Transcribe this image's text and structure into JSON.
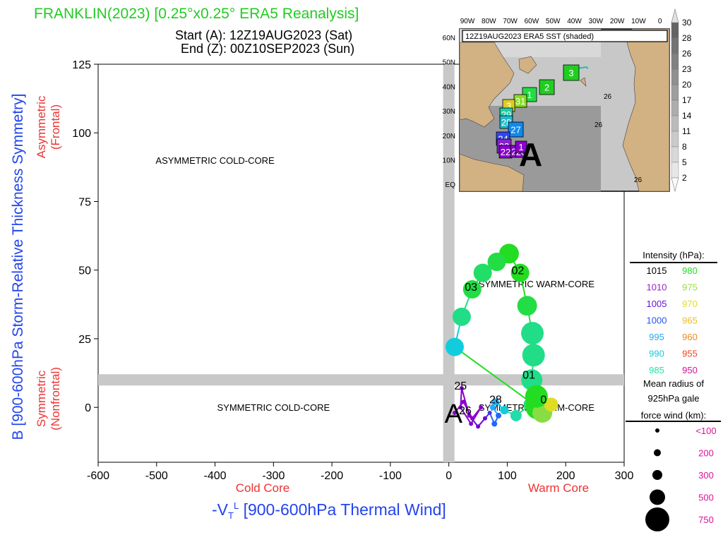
{
  "header": {
    "title": "FRANKLIN(2023) [0.25°x0.25° ERA5 Reanalysis]",
    "start": "Start (A): 12Z19AUG2023 (Sat)",
    "end": "End (Z): 00Z10SEP2023 (Sun)"
  },
  "chart_data": {
    "type": "scatter",
    "title": "FRANKLIN(2023) [0.25°x0.25° ERA5 Reanalysis]",
    "xlabel": "-VTL [900-600hPa Thermal Wind]",
    "xlabel_main": "-V",
    "xlabel_sub": "T",
    "xlabel_sup": "L",
    "xlabel_rest": " [900-600hPa Thermal Wind]",
    "ylabel": "B [900-600hPa Storm-Relative Thickness Symmetry]",
    "xlim": [
      -600,
      300
    ],
    "ylim": [
      -20,
      125
    ],
    "xticks": [
      "-600",
      "-500",
      "-400",
      "-300",
      "-200",
      "-100",
      "0",
      "100",
      "200",
      "300"
    ],
    "yticks": [
      "0",
      "25",
      "50",
      "75",
      "100",
      "125"
    ],
    "axis_notes": {
      "cold": "Cold Core",
      "warm": "Warm Core",
      "asym": "Asymmetric",
      "asym_sub": "(Frontal)",
      "sym": "Symmetric",
      "sym_sub": "(Nonfrontal)"
    },
    "quadrants": [
      {
        "label": "ASYMMETRIC COLD-CORE",
        "x": -400,
        "y": 90
      },
      {
        "label": "SYMMETRIC COLD-CORE",
        "x": -300,
        "y": 0
      },
      {
        "label": "SYMMETRIC WARM-CORE",
        "x": 150,
        "y": 0
      },
      {
        "label": "SYMMETRIC WARM-CORE",
        "x": 150,
        "y": 45
      }
    ],
    "threshold_lines": {
      "x": 0,
      "y": 10
    },
    "markers": {
      "start": "A"
    },
    "track": [
      {
        "x": 10,
        "y": -2,
        "c": "#8800cc",
        "r": 3
      },
      {
        "x": 25,
        "y": 2,
        "c": "#8800cc",
        "r": 3
      },
      {
        "x": 40,
        "y": -4,
        "c": "#8800cc",
        "r": 3
      },
      {
        "x": 55,
        "y": 0,
        "c": "#8800cc",
        "r": 3
      },
      {
        "x": 38,
        "y": -6,
        "c": "#8800cc",
        "r": 3
      },
      {
        "x": 20,
        "y": 0,
        "c": "#8800cc",
        "r": 3
      },
      {
        "x": 22,
        "y": 7,
        "c": "#8800cc",
        "r": 3
      },
      {
        "x": 35,
        "y": -3,
        "c": "#8800cc",
        "r": 3
      },
      {
        "x": 50,
        "y": -7,
        "c": "#6f00d8",
        "r": 3
      },
      {
        "x": 62,
        "y": -4,
        "c": "#6f00d8",
        "r": 3
      },
      {
        "x": 70,
        "y": -2,
        "c": "#4433ee",
        "r": 3
      },
      {
        "x": 78,
        "y": -6,
        "c": "#2266ff",
        "r": 4
      },
      {
        "x": 85,
        "y": -3,
        "c": "#2266ff",
        "r": 4
      },
      {
        "x": 75,
        "y": 0,
        "c": "#22aaff",
        "r": 4
      },
      {
        "x": 80,
        "y": 2,
        "c": "#22aaff",
        "r": 5
      },
      {
        "x": 95,
        "y": -1,
        "c": "#11ccdd",
        "r": 6
      },
      {
        "x": 115,
        "y": -3,
        "c": "#22ddaa",
        "r": 8
      },
      {
        "x": 140,
        "y": 1,
        "c": "#22dd77",
        "r": 10
      },
      {
        "x": 142,
        "y": 10,
        "c": "#22dd88",
        "r": 15
      },
      {
        "x": 145,
        "y": 19,
        "c": "#22dd88",
        "r": 16
      },
      {
        "x": 143,
        "y": 27,
        "c": "#22dd88",
        "r": 16
      },
      {
        "x": 134,
        "y": 37,
        "c": "#22dd44",
        "r": 14
      },
      {
        "x": 122,
        "y": 49,
        "c": "#22dd22",
        "r": 13
      },
      {
        "x": 103,
        "y": 56,
        "c": "#22dd22",
        "r": 14
      },
      {
        "x": 82,
        "y": 53,
        "c": "#22dd44",
        "r": 13
      },
      {
        "x": 58,
        "y": 49,
        "c": "#22dd66",
        "r": 13
      },
      {
        "x": 40,
        "y": 43,
        "c": "#22dd44",
        "r": 13
      },
      {
        "x": 22,
        "y": 33,
        "c": "#22dd88",
        "r": 13
      },
      {
        "x": 10,
        "y": 22,
        "c": "#11ccdd",
        "r": 13
      },
      {
        "x": 152,
        "y": 0,
        "c": "#22dd22",
        "r": 17
      },
      {
        "x": 160,
        "y": -2,
        "c": "#88dd44",
        "r": 14
      },
      {
        "x": 175,
        "y": 1,
        "c": "#dddd22",
        "r": 10
      },
      {
        "x": 150,
        "y": 4,
        "c": "#22dd22",
        "r": 16
      }
    ],
    "point_labels": [
      {
        "text": "01",
        "x": 137,
        "y": 12
      },
      {
        "text": "02",
        "x": 118,
        "y": 50
      },
      {
        "text": "03",
        "x": 38,
        "y": 44
      },
      {
        "text": "25",
        "x": 20,
        "y": 8
      },
      {
        "text": "26",
        "x": 28,
        "y": -1
      },
      {
        "text": "28",
        "x": 80,
        "y": 3
      },
      {
        "text": "0",
        "x": 162,
        "y": 3
      }
    ]
  },
  "inset_map": {
    "title": "12Z19AUG2023 ERA5 SST (shaded)",
    "lon_labels": [
      "90W",
      "80W",
      "70W",
      "60W",
      "50W",
      "40W",
      "30W",
      "20W",
      "10W",
      "0"
    ],
    "lat_labels": [
      "60N",
      "50N",
      "40N",
      "30N",
      "20N",
      "10N",
      "EQ"
    ],
    "isotherm_labels": [
      "26",
      "26",
      "26"
    ],
    "track_markers": [
      {
        "label": "3",
        "c": "#22cc22"
      },
      {
        "label": "2",
        "c": "#22cc22"
      },
      {
        "label": "1",
        "c": "#22dd44"
      },
      {
        "label": "31",
        "c": "#88dd22"
      },
      {
        "label": "3",
        "c": "#ddcc22"
      },
      {
        "label": "29",
        "c": "#22ccaa"
      },
      {
        "label": "28",
        "c": "#22bbcc"
      },
      {
        "label": "27",
        "c": "#1188ee"
      },
      {
        "label": "24",
        "c": "#3344ee"
      },
      {
        "label": "23",
        "c": "#8822cc"
      },
      {
        "label": "22",
        "c": "#8800cc"
      },
      {
        "label": "21",
        "c": "#8800cc"
      },
      {
        "label": "20",
        "c": "#8800cc"
      },
      {
        "label": "1",
        "c": "#8800cc"
      }
    ],
    "start_label": "A",
    "colorbar_labels": [
      "30",
      "28",
      "26",
      "23",
      "20",
      "17",
      "14",
      "11",
      "8",
      "5",
      "2"
    ]
  },
  "legend": {
    "intensity_title": "Intensity (hPa):",
    "intensity": [
      {
        "v": "1015",
        "c": "#000000"
      },
      {
        "v": "980",
        "c": "#22dd22"
      },
      {
        "v": "1010",
        "c": "#9922cc"
      },
      {
        "v": "975",
        "c": "#99dd44"
      },
      {
        "v": "1005",
        "c": "#6611dd"
      },
      {
        "v": "970",
        "c": "#dddd22"
      },
      {
        "v": "1000",
        "c": "#2255ee"
      },
      {
        "v": "965",
        "c": "#eebb22"
      },
      {
        "v": "995",
        "c": "#22aaee"
      },
      {
        "v": "960",
        "c": "#ee8822"
      },
      {
        "v": "990",
        "c": "#11ccdd"
      },
      {
        "v": "955",
        "c": "#ee4422"
      },
      {
        "v": "985",
        "c": "#22ddaa"
      },
      {
        "v": "950",
        "c": "#dd1199"
      }
    ],
    "radius_title_1": "Mean radius of",
    "radius_title_2": "925hPa gale",
    "radius_title_3": "force wind (km):",
    "radius": [
      "<100",
      "200",
      "300",
      "500",
      "750"
    ]
  }
}
